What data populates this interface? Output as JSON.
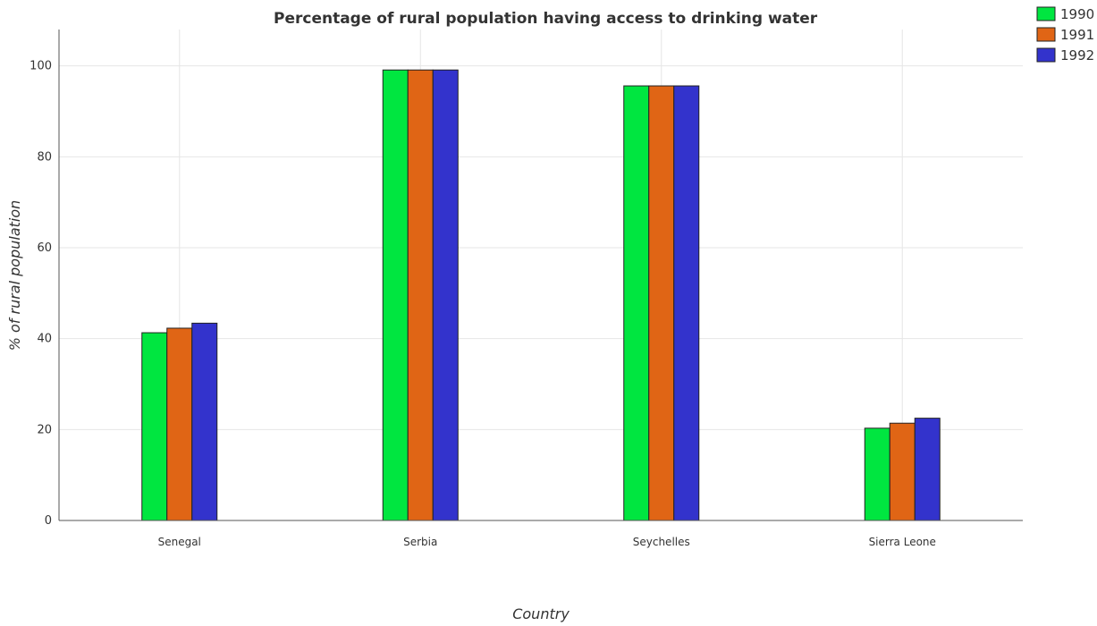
{
  "chart_data": {
    "type": "bar",
    "title": "Percentage of rural population having access to drinking water",
    "xlabel": "Country",
    "ylabel": "% of rural population",
    "categories": [
      "Senegal",
      "Serbia",
      "Seychelles",
      "Sierra Leone"
    ],
    "series": [
      {
        "name": "1990",
        "color": "#00e640",
        "values": [
          41.3,
          99.1,
          95.6,
          20.3
        ]
      },
      {
        "name": "1991",
        "color": "#e06515",
        "values": [
          42.3,
          99.1,
          95.6,
          21.4
        ]
      },
      {
        "name": "1992",
        "color": "#3333cc",
        "values": [
          43.4,
          99.1,
          95.6,
          22.5
        ]
      }
    ],
    "ylim": [
      0,
      108
    ],
    "yticks": [
      0,
      20,
      40,
      60,
      80,
      100
    ],
    "grid": true,
    "legend": "top-right"
  }
}
